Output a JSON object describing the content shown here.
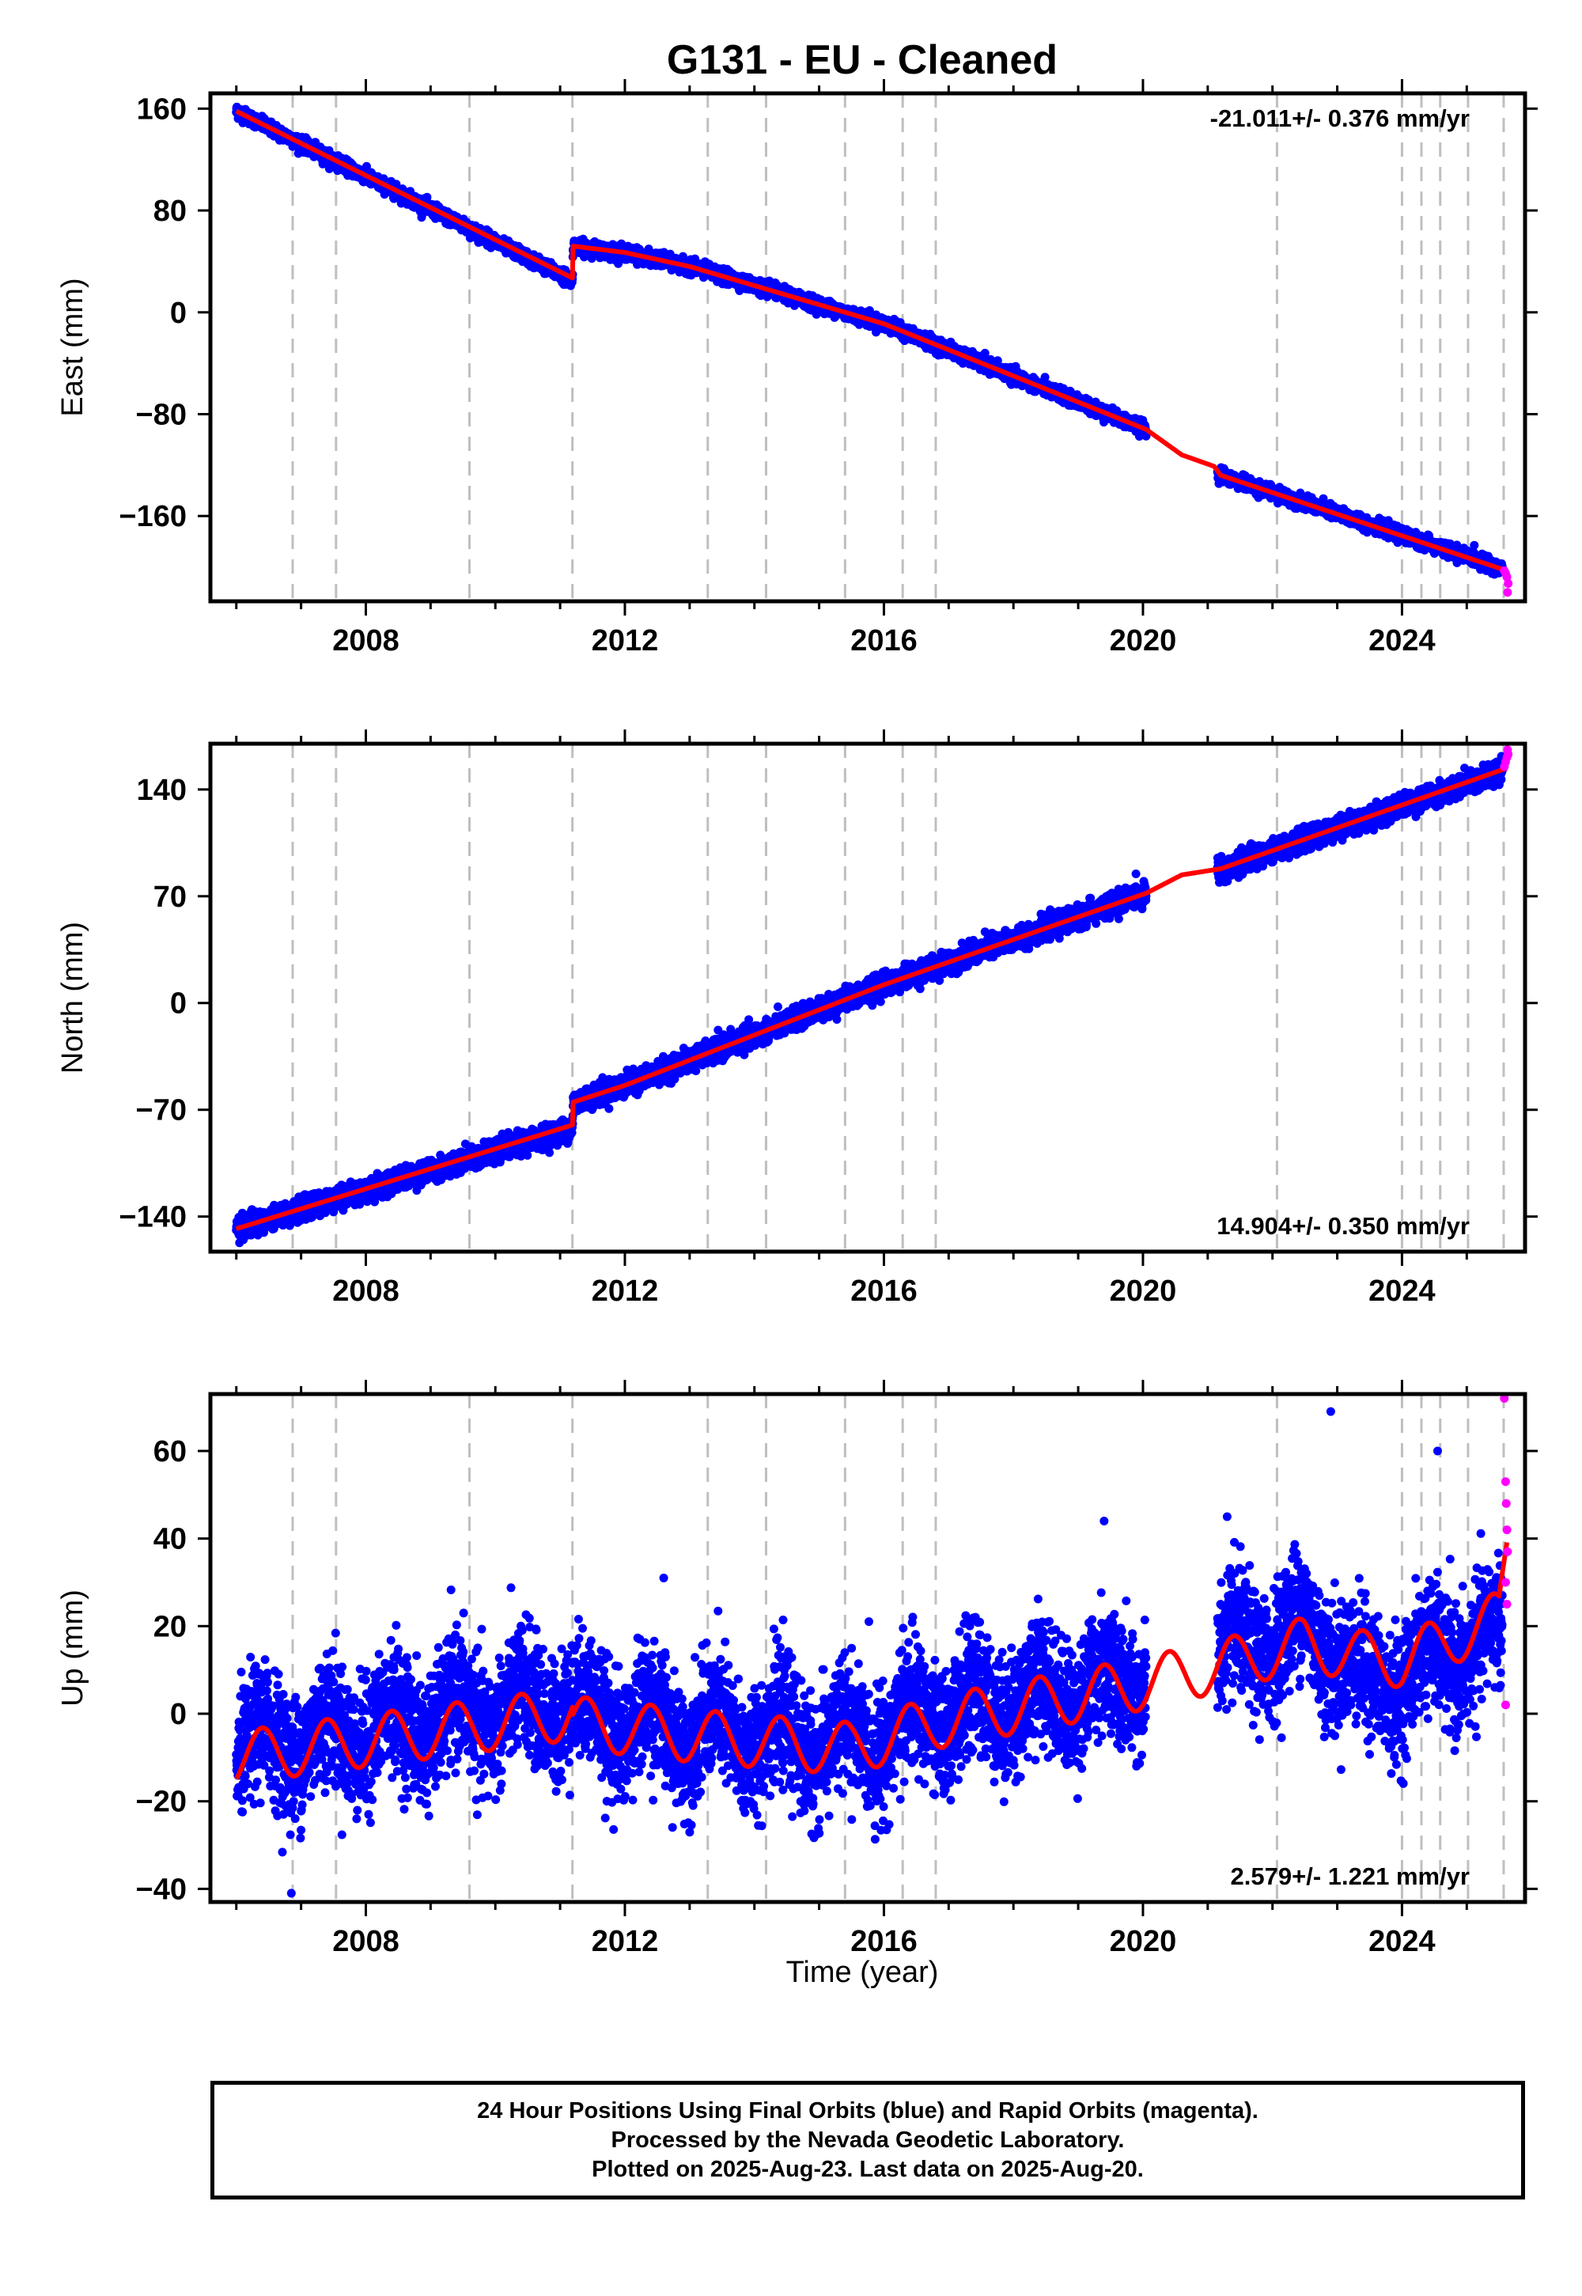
{
  "title": "G131  - EU - Cleaned",
  "xlabel": "Time (year)",
  "colors": {
    "final": "#0000ff",
    "rapid": "#ff00ff",
    "model": "#ff0000",
    "offsets": "#bfbfbf"
  },
  "footer": {
    "line1": "24 Hour Positions Using Final Orbits (blue) and Rapid Orbits (magenta).",
    "line2": "Processed by the Nevada Geodetic Laboratory.",
    "line3": "Plotted on 2025-Aug-23. Last data on 2025-Aug-20."
  },
  "chart_data": [
    {
      "type": "scatter",
      "component": "east",
      "ylabel": "East (mm)",
      "rate_label": "-21.011+/- 0.376 mm/yr",
      "rate_position": "top-right",
      "xlim": [
        2005.6,
        2025.9
      ],
      "ylim": [
        -227,
        172
      ],
      "xticks": [
        2008,
        2012,
        2016,
        2020,
        2024
      ],
      "yticks": [
        -160,
        -80,
        0,
        80,
        160
      ],
      "ytick_labels": [
        "−160",
        "−80",
        "0",
        "80",
        "160"
      ],
      "offset_epochs": [
        2006.87,
        2007.54,
        2009.6,
        2011.19,
        2013.28,
        2014.18,
        2015.4,
        2016.29,
        2016.8,
        2022.07,
        2024.0,
        2024.3,
        2024.59,
        2025.02,
        2025.57
      ],
      "data_gap": [
        2020.05,
        2021.15
      ],
      "series": [
        {
          "name": "Final Orbits",
          "start_year": 2006.0,
          "end_year": 2025.55,
          "trend_points": [
            [
              2006.0,
              158
            ],
            [
              2011.19,
              25
            ],
            [
              2011.2,
              52
            ],
            [
              2012.0,
              47
            ],
            [
              2013.0,
              36
            ],
            [
              2016.0,
              -9
            ],
            [
              2020.05,
              -92
            ],
            [
              2021.2,
              -128
            ],
            [
              2025.55,
              -201
            ]
          ],
          "noise_mm": 2.5
        },
        {
          "name": "Rapid Orbits",
          "points": [
            [
              2025.58,
              -203
            ],
            [
              2025.6,
              -205
            ],
            [
              2025.62,
              -208
            ],
            [
              2025.64,
              -213
            ],
            [
              2025.63,
              -220
            ]
          ]
        }
      ],
      "model": {
        "name": "model",
        "trend_points": [
          [
            2006.0,
            158
          ],
          [
            2011.19,
            27
          ],
          [
            2011.2,
            52
          ],
          [
            2012.0,
            47
          ],
          [
            2013.0,
            36
          ],
          [
            2016.0,
            -9
          ],
          [
            2020.05,
            -92
          ],
          [
            2020.6,
            -112
          ],
          [
            2021.1,
            -121
          ],
          [
            2021.2,
            -128
          ],
          [
            2025.62,
            -203
          ]
        ]
      }
    },
    {
      "type": "scatter",
      "component": "north",
      "ylabel": "North (mm)",
      "rate_label": "14.904+/- 0.350 mm/yr",
      "rate_position": "bottom-right",
      "xlim": [
        2005.6,
        2025.9
      ],
      "ylim": [
        -163,
        170
      ],
      "xticks": [
        2008,
        2012,
        2016,
        2020,
        2024
      ],
      "yticks": [
        -140,
        -70,
        0,
        70,
        140
      ],
      "ytick_labels": [
        "−140",
        "−70",
        "0",
        "70",
        "140"
      ],
      "offset_epochs": [
        2006.87,
        2007.54,
        2009.6,
        2011.19,
        2013.28,
        2014.18,
        2015.4,
        2016.29,
        2016.8,
        2022.07,
        2024.0,
        2024.3,
        2024.59,
        2025.02,
        2025.57
      ],
      "data_gap": [
        2020.05,
        2021.15
      ],
      "series": [
        {
          "name": "Final Orbits",
          "start_year": 2006.0,
          "end_year": 2025.55,
          "trend_points": [
            [
              2006.0,
              -148
            ],
            [
              2011.19,
              -82
            ],
            [
              2011.2,
              -65
            ],
            [
              2012.0,
              -54
            ],
            [
              2016.0,
              12
            ],
            [
              2020.05,
              72
            ],
            [
              2021.2,
              88
            ],
            [
              2025.55,
              152
            ]
          ],
          "noise_mm": 3.5
        },
        {
          "name": "Rapid Orbits",
          "points": [
            [
              2025.58,
              155
            ],
            [
              2025.6,
              158
            ],
            [
              2025.62,
              161
            ],
            [
              2025.64,
              163
            ],
            [
              2025.63,
              166
            ]
          ]
        }
      ],
      "model": {
        "name": "model",
        "trend_points": [
          [
            2006.0,
            -148
          ],
          [
            2011.19,
            -80
          ],
          [
            2011.2,
            -65
          ],
          [
            2012.0,
            -54
          ],
          [
            2016.0,
            12
          ],
          [
            2020.05,
            72
          ],
          [
            2020.6,
            84
          ],
          [
            2021.2,
            88
          ],
          [
            2025.62,
            154
          ]
        ]
      }
    },
    {
      "type": "scatter",
      "component": "up",
      "ylabel": "Up (mm)",
      "rate_label": "2.579+/- 1.221 mm/yr",
      "rate_position": "bottom-right",
      "xlim": [
        2005.6,
        2025.9
      ],
      "ylim": [
        -43,
        73
      ],
      "xticks": [
        2008,
        2012,
        2016,
        2020,
        2024
      ],
      "yticks": [
        -40,
        -20,
        0,
        20,
        40,
        60
      ],
      "ytick_labels": [
        "−40",
        "−20",
        "0",
        "20",
        "40",
        "60"
      ],
      "offset_epochs": [
        2006.87,
        2007.54,
        2009.6,
        2011.19,
        2013.28,
        2014.18,
        2015.4,
        2016.29,
        2016.8,
        2022.07,
        2024.0,
        2024.3,
        2024.59,
        2025.02,
        2025.57
      ],
      "data_gap": [
        2020.05,
        2021.15
      ],
      "series": [
        {
          "name": "Final Orbits",
          "start_year": 2006.0,
          "end_year": 2025.55,
          "trend_points": [
            [
              2006.0,
              -8
            ],
            [
              2011.19,
              3
            ],
            [
              2011.2,
              0
            ],
            [
              2013.0,
              -4
            ],
            [
              2015.5,
              -7
            ],
            [
              2016.8,
              0
            ],
            [
              2020.05,
              8
            ],
            [
              2021.2,
              13
            ],
            [
              2022.5,
              20
            ],
            [
              2023.2,
              12
            ],
            [
              2023.4,
              5
            ],
            [
              2025.55,
              18
            ]
          ],
          "seasonal_amplitude_mm": 5,
          "noise_mm": 7,
          "outliers": [
            [
              2006.85,
              -41
            ],
            [
              2022.9,
              69
            ],
            [
              2024.55,
              60
            ],
            [
              2019.4,
              44
            ],
            [
              2012.6,
              31
            ],
            [
              2021.3,
              45
            ]
          ]
        },
        {
          "name": "Rapid Orbits",
          "points": [
            [
              2025.58,
              72
            ],
            [
              2025.6,
              53
            ],
            [
              2025.61,
              48
            ],
            [
              2025.62,
              42
            ],
            [
              2025.63,
              37
            ],
            [
              2025.6,
              30
            ],
            [
              2025.62,
              25
            ],
            [
              2025.6,
              2
            ]
          ]
        }
      ],
      "model": {
        "name": "model",
        "trend_points": [
          [
            2006.0,
            -10
          ],
          [
            2011.19,
            0
          ],
          [
            2011.2,
            -2
          ],
          [
            2013.0,
            -5
          ],
          [
            2015.5,
            -8
          ],
          [
            2016.8,
            -2
          ],
          [
            2020.05,
            7
          ],
          [
            2021.2,
            11
          ],
          [
            2022.5,
            16
          ],
          [
            2023.4,
            13
          ],
          [
            2024.0,
            12
          ],
          [
            2025.5,
            22
          ],
          [
            2025.62,
            38
          ]
        ],
        "seasonal_amplitude_mm": 6
      }
    }
  ]
}
